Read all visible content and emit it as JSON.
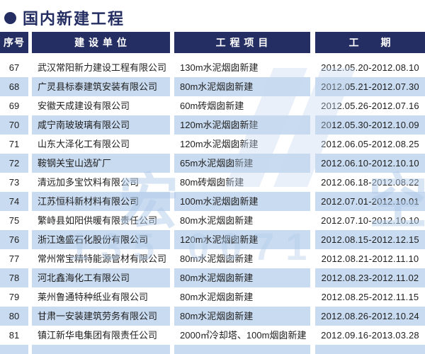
{
  "page": {
    "title": "国内新建工程"
  },
  "table": {
    "columns": [
      {
        "key": "serial",
        "label": "序号"
      },
      {
        "key": "company",
        "label": "建 设 单 位"
      },
      {
        "key": "project",
        "label": "工 程 项 目"
      },
      {
        "key": "period",
        "label": "工　　期"
      }
    ],
    "rows": [
      {
        "serial": "67",
        "company": "武汉常阳新力建设工程有限公司",
        "project": "130m水泥烟囱新建",
        "period": "2012.05.20-2012.08.10"
      },
      {
        "serial": "68",
        "company": "广灵县标泰建筑安装有限公司",
        "project": "80m水泥烟囱新建",
        "period": "2012.05.21-2012.07.30"
      },
      {
        "serial": "69",
        "company": "安徽天成建设有限公司",
        "project": "60m砖烟囱新建",
        "period": "2012.05.26-2012.07.16"
      },
      {
        "serial": "70",
        "company": "咸宁南玻玻璃有限公司",
        "project": "120m水泥烟囱新建",
        "period": "2012.05.30-2012.10.09"
      },
      {
        "serial": "71",
        "company": "山东大泽化工有限公司",
        "project": "120m水泥烟囱新建",
        "period": "2012.06.05-2012.08.25"
      },
      {
        "serial": "72",
        "company": "鞍钢关宝山选矿厂",
        "project": "65m水泥烟囱新建",
        "period": "2012.06.10-2012.10.10"
      },
      {
        "serial": "73",
        "company": "清远加多宝饮料有限公司",
        "project": "80m砖烟囱新建",
        "period": "2012.06.18-2012.08.22"
      },
      {
        "serial": "74",
        "company": "江苏恒科新材料有限公司",
        "project": "100m水泥烟囱新建",
        "period": "2012.07.01-2012.10.01"
      },
      {
        "serial": "75",
        "company": "繁峙县如阳供暖有限责任公司",
        "project": "80m水泥烟囱新建",
        "period": "2012.07.10-2012.10.10"
      },
      {
        "serial": "76",
        "company": "浙江逸盛石化股份有限公司",
        "project": "120m水泥烟囱新建",
        "period": "2012.08.15-2012.12.15"
      },
      {
        "serial": "77",
        "company": "常州常宝精特能源管材有限公司",
        "project": "80m水泥烟囱新建",
        "period": "2012.08.21-2012.11.10"
      },
      {
        "serial": "78",
        "company": "河北鑫海化工有限公司",
        "project": "80m水泥烟囱新建",
        "period": "2012.08.23-2012.11.02"
      },
      {
        "serial": "79",
        "company": "莱州鲁通特种纸业有限公司",
        "project": "80m水泥烟囱新建",
        "period": "2012.08.25-2012.11.15"
      },
      {
        "serial": "80",
        "company": "甘肃一安装建筑劳务有限公司",
        "project": "80m水泥烟囱新建",
        "period": "2012.08.26-2012.10.24"
      },
      {
        "serial": "81",
        "company": "镇江新华电集团有限责任公司",
        "project": "2000㎡冷却塔、100m烟囱新建",
        "period": "2012.09.16-2013.03.28"
      }
    ]
  },
  "colors": {
    "navy": "#242e62",
    "row_alt": "#c9dbf0",
    "watermark": "#b2ccea"
  },
  "watermark": {
    "left_glyph": "宏",
    "right_glyph": "空",
    "digits": "135 0071"
  }
}
